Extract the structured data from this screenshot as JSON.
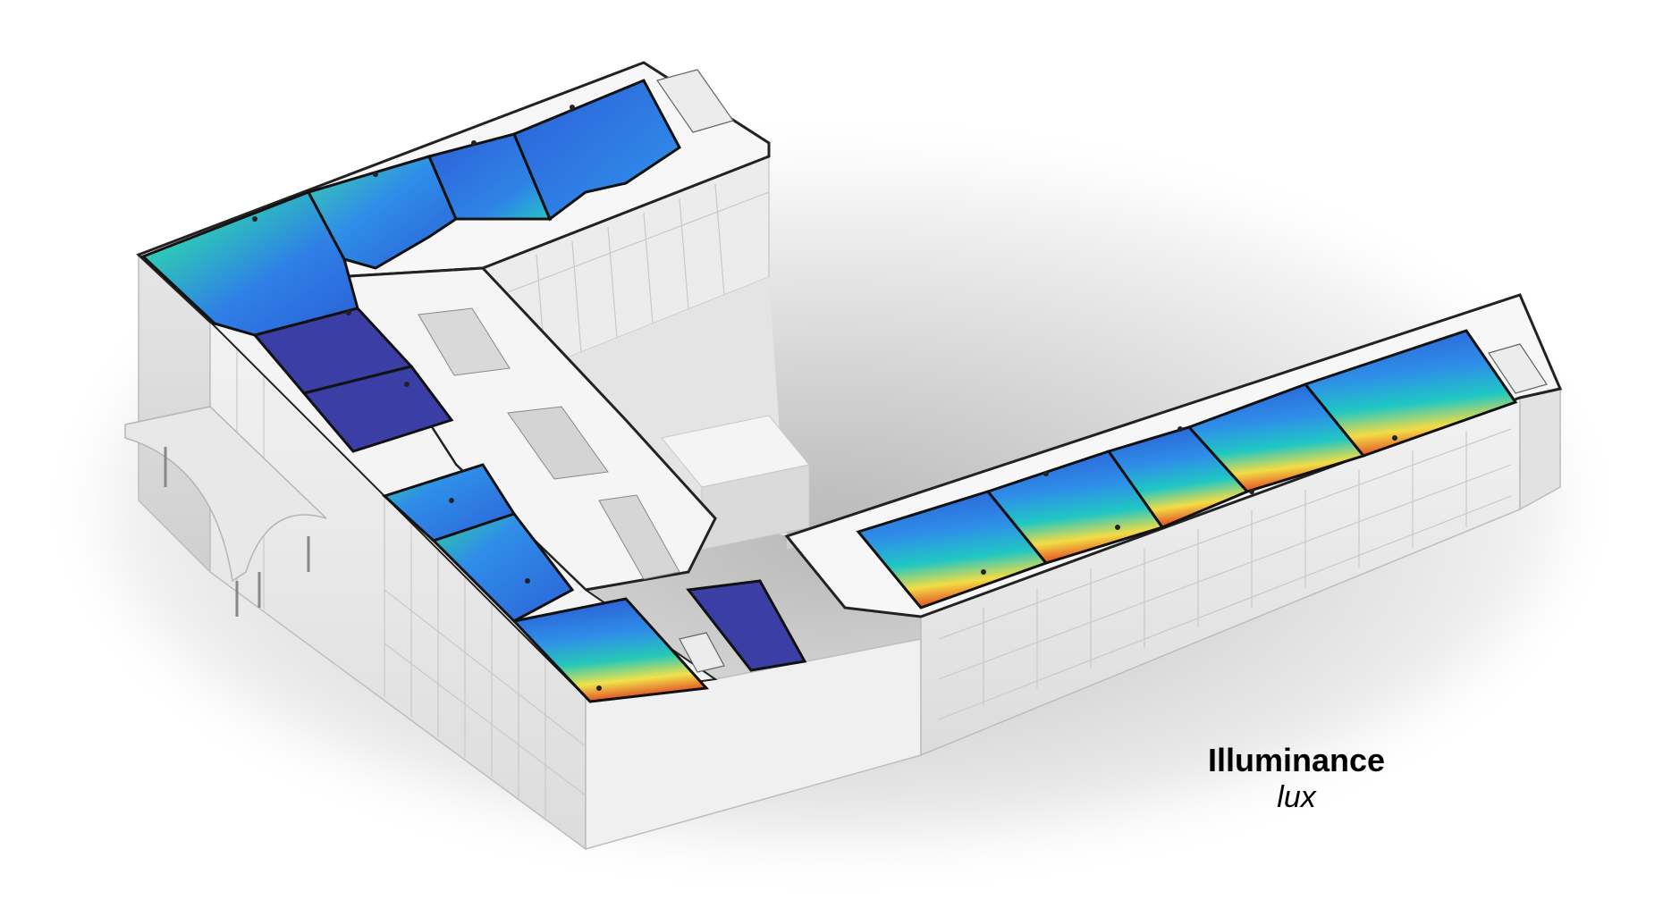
{
  "legend": {
    "title": "Illuminance",
    "unit": "lux"
  },
  "colors": {
    "low": "#3a3fa3",
    "mid_low": "#2f7fe6",
    "mid": "#19c8c8",
    "mid_high": "#f1e84a",
    "high": "#e0301e"
  }
}
